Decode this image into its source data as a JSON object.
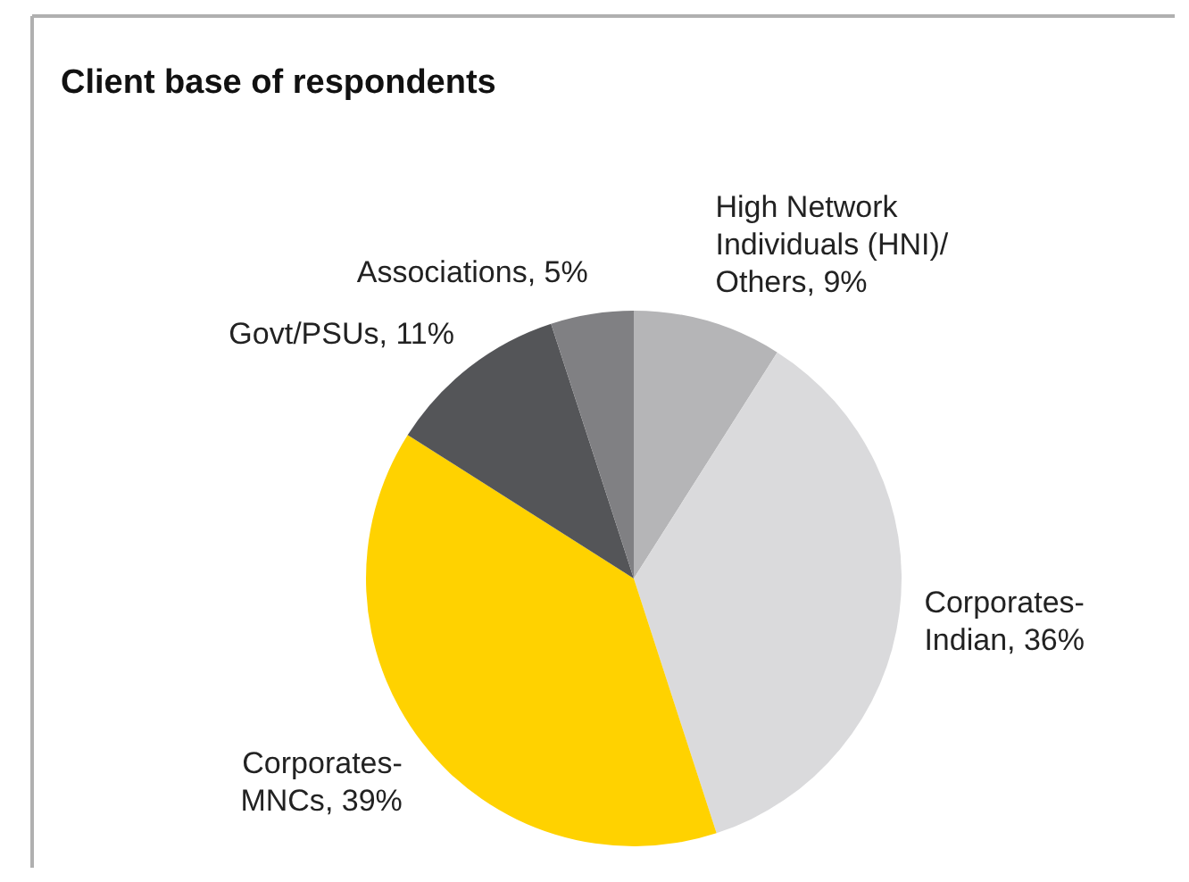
{
  "chart_data": {
    "type": "pie",
    "title": "Client base of respondents",
    "categories": [
      "High Network Individuals (HNI)/Others",
      "Corporates-Indian",
      "Corporates-MNCs",
      "Govt/PSUs",
      "Associations"
    ],
    "values": [
      9,
      36,
      39,
      11,
      5
    ],
    "value_labels": [
      ", 9%",
      ", 36%",
      ", 39%",
      ", 11%",
      ", 5%"
    ],
    "colors": [
      "#b5b5b7",
      "#dadadc",
      "#ffd200",
      "#545558",
      "#808083"
    ]
  }
}
